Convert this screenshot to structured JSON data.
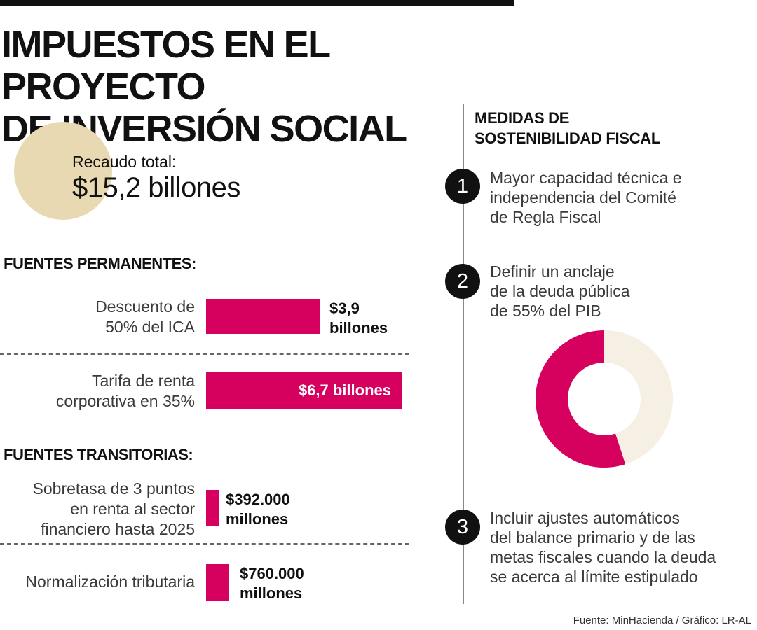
{
  "title": {
    "line1": "IMPUESTOS EN EL PROYECTO",
    "line2": "DE INVERSIÓN SOCIAL"
  },
  "total": {
    "label": "Recaudo total:",
    "value": "$15,2 billones"
  },
  "permanentes": {
    "heading": "FUENTES PERMANENTES:",
    "rows": [
      {
        "label_line1": "Descuento de",
        "label_line2": "50% del ICA",
        "value_line1": "$3,9",
        "value_line2": "billones"
      },
      {
        "label_line1": "Tarifa de renta",
        "label_line2": "corporativa en 35%",
        "value": "$6,7 billones"
      }
    ]
  },
  "transitorias": {
    "heading": "FUENTES TRANSITORIAS:",
    "rows": [
      {
        "label_line1": "Sobretasa de 3 puntos",
        "label_line2": "en renta al sector",
        "label_line3": "financiero hasta 2025",
        "value_line1": "$392.000",
        "value_line2": "millones"
      },
      {
        "label": "Normalización tributaria",
        "value_line1": "$760.000",
        "value_line2": "millones"
      }
    ]
  },
  "medidas": {
    "heading_line1": "MEDIDAS DE",
    "heading_line2": "SOSTENIBILIDAD FISCAL",
    "items": [
      {
        "number": "1",
        "line1": "Mayor capacidad técnica e",
        "line2": "independencia del Comité",
        "line3": "de Regla Fiscal"
      },
      {
        "number": "2",
        "line1": "Definir un anclaje",
        "line2": "de la deuda pública",
        "line3": "de 55% del PIB"
      },
      {
        "number": "3",
        "line1": "Incluir ajustes automáticos",
        "line2": "del balance primario y de las",
        "line3": "metas fiscales cuando la deuda",
        "line4": "se acerca al límite estipulado"
      }
    ]
  },
  "source": "Fuente: MinHacienda / Gráfico: LR-AL",
  "colors": {
    "accent": "#d6005f",
    "circle": "#e9d9b2",
    "donut_rest": "#f5efe4"
  },
  "chart_data": [
    {
      "type": "bar",
      "orientation": "horizontal",
      "unit": "billones",
      "categories": [
        "Descuento de 50% del ICA",
        "Tarifa de renta corporativa en 35%",
        "Sobretasa de 3 puntos en renta al sector financiero hasta 2025",
        "Normalización tributaria"
      ],
      "values": [
        3.9,
        6.7,
        0.392,
        0.76
      ]
    },
    {
      "type": "pie",
      "categories": [
        "Deuda pública",
        ""
      ],
      "values": [
        55,
        45
      ],
      "colors": [
        "#d6005f",
        "#f5efe4"
      ]
    }
  ]
}
